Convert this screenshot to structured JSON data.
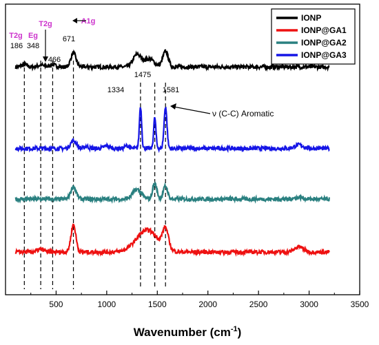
{
  "chart_data": {
    "type": "line",
    "title": "",
    "xlabel_main": "Wavenumber (cm",
    "xlabel_sup": "-1",
    "xlabel_close": ")",
    "ylabel": "",
    "xlim": [
      0,
      3500
    ],
    "x_ticks": [
      "500",
      "1000",
      "1500",
      "2000",
      "2500",
      "3000",
      "3500"
    ],
    "x_tick_values": [
      500,
      1000,
      1500,
      2000,
      2500,
      3000,
      3500
    ],
    "legend_position": "top-right",
    "series": [
      {
        "name": "IONP",
        "color": "#000000",
        "offset": 4.2,
        "peaks": [
          [
            186,
            0.05,
            40
          ],
          [
            348,
            0.04,
            40
          ],
          [
            466,
            0.05,
            40
          ],
          [
            671,
            0.32,
            36
          ],
          [
            1300,
            0.28,
            55
          ],
          [
            1420,
            0.18,
            70
          ],
          [
            1581,
            0.35,
            38
          ]
        ]
      },
      {
        "name": "IONP@GA3",
        "color": "#1515e6",
        "offset": 2.35,
        "peaks": [
          [
            671,
            0.18,
            40
          ],
          [
            800,
            0.05,
            25
          ],
          [
            1000,
            0.06,
            40
          ],
          [
            1200,
            0.06,
            30
          ],
          [
            1334,
            0.95,
            16
          ],
          [
            1475,
            0.7,
            16
          ],
          [
            1581,
            0.95,
            20
          ],
          [
            2900,
            0.08,
            60
          ]
        ]
      },
      {
        "name": "IONP@GA2",
        "color": "#2a8080",
        "offset": 1.2,
        "peaks": [
          [
            671,
            0.28,
            38
          ],
          [
            1300,
            0.22,
            60
          ],
          [
            1475,
            0.35,
            30
          ],
          [
            1581,
            0.3,
            30
          ],
          [
            2900,
            0.04,
            60
          ]
        ]
      },
      {
        "name": "IONP@GA1",
        "color": "#ee1111",
        "offset": 0,
        "peaks": [
          [
            348,
            0.06,
            50
          ],
          [
            671,
            0.62,
            34
          ],
          [
            1400,
            0.5,
            150
          ],
          [
            1581,
            0.45,
            40
          ],
          [
            2900,
            0.12,
            60
          ]
        ]
      }
    ],
    "legend_order": [
      "IONP",
      "IONP@GA1",
      "IONP@GA2",
      "IONP@GA3"
    ],
    "assignments": [
      {
        "label": "T2g",
        "color": "#cc33cc"
      },
      {
        "label": "Eg",
        "color": "#cc33cc"
      },
      {
        "label": "T2g",
        "color": "#cc33cc"
      },
      {
        "label": "A1g",
        "color": "#cc33cc"
      }
    ],
    "peak_labels": [
      {
        "text": "186",
        "x": 186
      },
      {
        "text": "348",
        "x": 348
      },
      {
        "text": "466",
        "x": 466
      },
      {
        "text": "671",
        "x": 671
      },
      {
        "text": "1334",
        "x": 1334
      },
      {
        "text": "1475",
        "x": 1475
      },
      {
        "text": "1581",
        "x": 1581
      }
    ],
    "dashed_lines_x": [
      186,
      348,
      466,
      671,
      1334,
      1475,
      1581
    ],
    "annotation": "ν (C-C) Aromatic"
  }
}
